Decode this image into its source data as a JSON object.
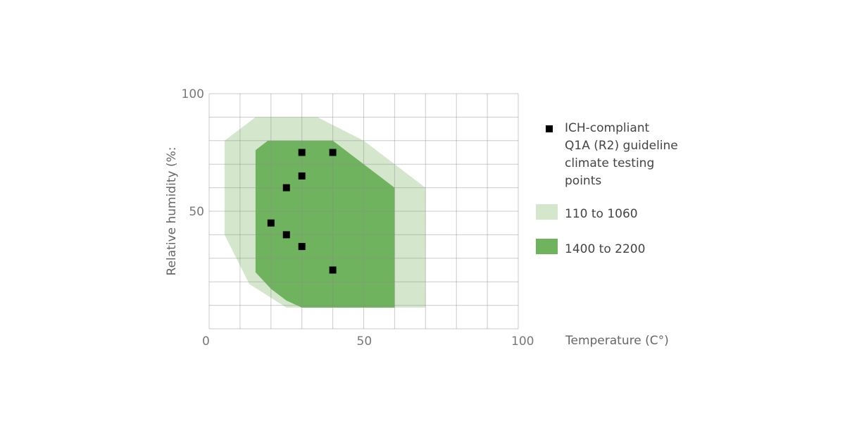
{
  "chart_data": {
    "type": "area",
    "xlabel": "Temperature (C°)",
    "ylabel": "Relative humidity (%:",
    "xlim": [
      0,
      100
    ],
    "ylim": [
      0,
      100
    ],
    "x_ticks": [
      0,
      50,
      100
    ],
    "y_ticks": [
      50,
      100
    ],
    "grid": true,
    "legend_position": "right",
    "regions": [
      {
        "name": "110 to 1060",
        "color": "#d4e7cd",
        "polygon": [
          [
            5,
            80
          ],
          [
            15,
            90
          ],
          [
            35,
            90
          ],
          [
            50,
            80
          ],
          [
            70,
            60
          ],
          [
            70,
            9
          ],
          [
            25,
            9
          ],
          [
            13,
            19
          ],
          [
            5,
            40
          ]
        ]
      },
      {
        "name": "1400 to 2200",
        "color": "#70b35f",
        "polygon": [
          [
            15,
            76
          ],
          [
            19,
            80
          ],
          [
            40,
            80
          ],
          [
            60,
            60
          ],
          [
            60,
            9
          ],
          [
            30,
            9
          ],
          [
            25,
            12
          ],
          [
            20,
            17
          ],
          [
            15,
            24
          ]
        ]
      }
    ],
    "points_series": {
      "name_lines": [
        "ICH-compliant",
        "Q1A (R2) guideline",
        "climate testing",
        "points"
      ],
      "color": "#000000",
      "points": [
        [
          30,
          75
        ],
        [
          40,
          75
        ],
        [
          30,
          65
        ],
        [
          25,
          60
        ],
        [
          20,
          45
        ],
        [
          25,
          40
        ],
        [
          30,
          35
        ],
        [
          40,
          25
        ]
      ]
    }
  }
}
